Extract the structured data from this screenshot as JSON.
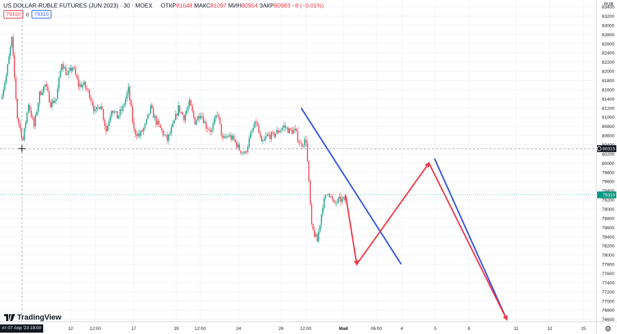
{
  "header": {
    "title": "US DOLLAR-RUBLE FUTURES (JUN 2023) · 30 · MOEX",
    "open_label": "ОТКР",
    "open": "81048",
    "high_label": "МАКС",
    "high": "81097",
    "low_label": "МИН",
    "low": "80954",
    "close_label": "ЗАКР",
    "close": "80983",
    "change": "−8 (−0.01%)"
  },
  "pills": {
    "bid": "79310",
    "spread": "0",
    "ask": "79310"
  },
  "crosshair": {
    "time_label": "пт 07 Апр '23  19:00",
    "price_label": "80315",
    "price": 80315
  },
  "last_price": {
    "label": "79310",
    "value": 79310
  },
  "currency": "RUB",
  "branding": {
    "name": "TradingView"
  },
  "colors": {
    "up": "#089981",
    "down": "#f23645",
    "blue_line": "#2e4ce6",
    "red_line": "#f23645",
    "price_tag": "#089981",
    "crosshair_tag": "#131722"
  },
  "chart_data": {
    "type": "candlestick",
    "symbol": "US DOLLAR-RUBLE FUTURES (JUN 2023)",
    "timeframe": "30",
    "exchange": "MOEX",
    "y_ticks": [
      76600,
      76800,
      77000,
      77200,
      77400,
      77600,
      77800,
      78000,
      78200,
      78400,
      78600,
      78800,
      79000,
      79200,
      79400,
      79600,
      79800,
      80000,
      80200,
      80400,
      80600,
      80800,
      81000,
      81200,
      81400,
      81600,
      81800,
      82000,
      82200,
      82400,
      82600,
      82800,
      83000,
      83200,
      83400
    ],
    "ylim": [
      76550,
      83550
    ],
    "x_tick_labels": [
      "12",
      "12:00",
      "17",
      "19",
      "12:00",
      "24",
      "26",
      "12:00",
      "Май",
      "06:00",
      "4",
      "5",
      "8",
      "11",
      "12",
      "15"
    ],
    "price_path": [
      81400,
      81900,
      82700,
      81000,
      80500,
      81300,
      80800,
      81500,
      81700,
      81300,
      81400,
      82200,
      81900,
      82100,
      81700,
      81700,
      81500,
      81100,
      81300,
      80700,
      81200,
      81000,
      81200,
      81600,
      80700,
      80600,
      80800,
      81200,
      80900,
      80700,
      80500,
      80800,
      81200,
      81000,
      81300,
      80900,
      81100,
      80800,
      80700,
      81100,
      80500,
      80600,
      80500,
      80300,
      80200,
      80600,
      80900,
      80400,
      80600,
      80600,
      80700,
      80800,
      80700,
      80700,
      80400,
      80500,
      78600,
      78300,
      79100,
      79400,
      79100,
      79200,
      79200
    ],
    "drawings": [
      {
        "name": "blue-line-1",
        "color": "blue",
        "from": {
          "bar": 54,
          "price": 81200
        },
        "to": {
          "bar": 72,
          "price": 77800
        }
      },
      {
        "name": "blue-line-2",
        "color": "blue",
        "from": {
          "bar": 78,
          "price": 80100
        },
        "to": {
          "bar": 91,
          "price": 76600
        }
      },
      {
        "name": "red-path",
        "color": "red",
        "points": [
          {
            "bar": 62,
            "price": 79300
          },
          {
            "bar": 64,
            "price": 77800
          },
          {
            "bar": 77,
            "price": 80000
          },
          {
            "bar": 91,
            "price": 76600
          }
        ]
      }
    ]
  }
}
